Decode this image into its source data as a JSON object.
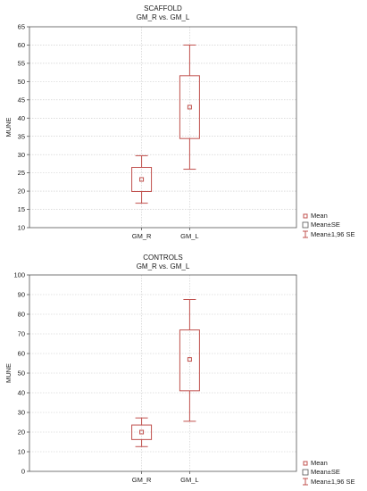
{
  "chart_data": [
    {
      "type": "box",
      "title": "SCAFFOLD",
      "subtitle": "GM_R vs. GM_L",
      "ylabel": "MUNE",
      "xlabel": "",
      "ylim": [
        10,
        65
      ],
      "ytick_step": 5,
      "grid": true,
      "categories": [
        "GM_R",
        "GM_L"
      ],
      "series": [
        {
          "category": "GM_R",
          "mean": 23.2,
          "se_low": 19.9,
          "se_high": 26.5,
          "ci_low": 16.7,
          "ci_high": 29.7
        },
        {
          "category": "GM_L",
          "mean": 43,
          "se_low": 34.4,
          "se_high": 51.6,
          "ci_low": 26,
          "ci_high": 60
        }
      ],
      "legend": [
        "Mean",
        "Mean±SE",
        "Mean±1,96 SE"
      ],
      "legend_position": "bottom-right",
      "color": "#c0504d"
    },
    {
      "type": "box",
      "title": "CONTROLS",
      "subtitle": "GM_R vs. GM_L",
      "ylabel": "MUNE",
      "xlabel": "",
      "ylim": [
        0,
        100
      ],
      "ytick_step": 10,
      "grid": true,
      "categories": [
        "GM_R",
        "GM_L"
      ],
      "series": [
        {
          "category": "GM_R",
          "mean": 20,
          "se_low": 16.2,
          "se_high": 23.6,
          "ci_low": 12.6,
          "ci_high": 27.2
        },
        {
          "category": "GM_L",
          "mean": 57,
          "se_low": 41,
          "se_high": 72,
          "ci_low": 25.5,
          "ci_high": 87.5
        }
      ],
      "legend": [
        "Mean",
        "Mean±SE",
        "Mean±1,96 SE"
      ],
      "legend_position": "bottom-right",
      "color": "#c0504d"
    }
  ]
}
